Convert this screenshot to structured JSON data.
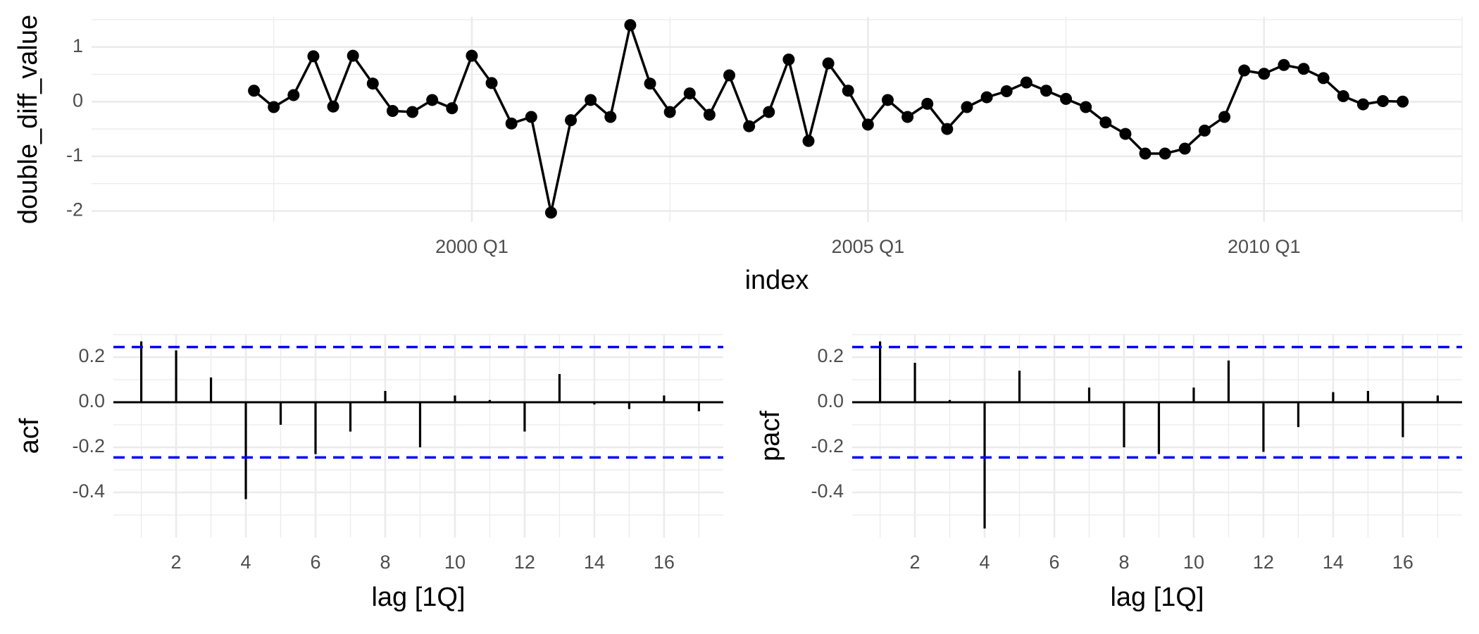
{
  "chart_data": [
    {
      "type": "line",
      "x_label": "index",
      "y_label": "double_diff_value",
      "color": "#000000",
      "grid": true,
      "x": [
        1997.25,
        1997.5,
        1997.75,
        1998,
        1998.25,
        1998.5,
        1998.75,
        1999,
        1999.25,
        1999.5,
        1999.75,
        2000,
        2000.25,
        2000.5,
        2000.75,
        2001,
        2001.25,
        2001.5,
        2001.75,
        2002,
        2002.25,
        2002.5,
        2002.75,
        2003,
        2003.25,
        2003.5,
        2003.75,
        2004,
        2004.25,
        2004.5,
        2004.75,
        2005,
        2005.25,
        2005.5,
        2005.75,
        2006,
        2006.25,
        2006.5,
        2006.75,
        2007,
        2007.25,
        2007.5,
        2007.75,
        2008,
        2008.25,
        2008.5,
        2008.75,
        2009,
        2009.25,
        2009.5,
        2009.75,
        2010,
        2010.25,
        2010.5,
        2010.75,
        2011,
        2011.25,
        2011.5,
        2011.75
      ],
      "values": [
        0.2,
        -0.1,
        0.12,
        0.83,
        -0.09,
        0.84,
        0.33,
        -0.17,
        -0.19,
        0.03,
        -0.12,
        0.84,
        0.34,
        -0.4,
        -0.28,
        -2.03,
        -0.34,
        0.03,
        -0.28,
        1.4,
        0.33,
        -0.19,
        0.15,
        -0.24,
        0.48,
        -0.45,
        -0.19,
        0.77,
        -0.72,
        0.7,
        0.2,
        -0.42,
        0.03,
        -0.28,
        -0.04,
        -0.5,
        -0.1,
        0.08,
        0.19,
        0.35,
        0.2,
        0.05,
        -0.1,
        -0.38,
        -0.59,
        -0.95,
        -0.95,
        -0.86,
        -0.53,
        -0.28,
        0.57,
        0.51,
        0.67,
        0.6,
        0.43,
        0.1,
        -0.05,
        0.01,
        0.0
      ],
      "xlim": [
        1995.2,
        2012.5
      ],
      "xticks": [
        {
          "value": 2000,
          "label": "2000 Q1"
        },
        {
          "value": 2005,
          "label": "2005 Q1"
        },
        {
          "value": 2010,
          "label": "2010 Q1"
        }
      ],
      "ylim": [
        -2.2,
        1.55
      ],
      "yticks": [
        -2,
        -1,
        0,
        1
      ]
    },
    {
      "type": "bar",
      "x_label": "lag [1Q]",
      "y_label": "acf",
      "color": "#000000",
      "grid": true,
      "x": [
        1,
        2,
        3,
        4,
        5,
        6,
        7,
        8,
        9,
        10,
        11,
        12,
        13,
        14,
        15,
        16,
        17
      ],
      "values": [
        0.27,
        0.23,
        0.11,
        -0.43,
        -0.1,
        -0.23,
        -0.13,
        0.05,
        -0.2,
        0.03,
        0.01,
        -0.13,
        0.125,
        -0.01,
        -0.03,
        0.03,
        -0.04
      ],
      "ci": [
        0.245,
        -0.245
      ],
      "ci_color": "#0000ff",
      "xlim": [
        0.2,
        17.7
      ],
      "xticks": [
        2,
        4,
        6,
        8,
        10,
        12,
        14,
        16
      ],
      "ylim": [
        -0.6,
        0.3
      ],
      "yticks": [
        -0.4,
        -0.2,
        {
          "value": 0,
          "label": "0.0"
        },
        0.2
      ]
    },
    {
      "type": "bar",
      "x_label": "lag [1Q]",
      "y_label": "pacf",
      "color": "#000000",
      "grid": true,
      "x": [
        1,
        2,
        3,
        4,
        5,
        6,
        7,
        8,
        9,
        10,
        11,
        12,
        13,
        14,
        15,
        16,
        17
      ],
      "values": [
        0.27,
        0.175,
        0.01,
        -0.56,
        0.14,
        0,
        0.065,
        -0.2,
        -0.23,
        0.065,
        0.185,
        -0.22,
        -0.11,
        0.045,
        0.05,
        -0.155,
        0.03
      ],
      "ci": [
        0.245,
        -0.245
      ],
      "ci_color": "#0000ff",
      "xlim": [
        0.2,
        17.7
      ],
      "xticks": [
        2,
        4,
        6,
        8,
        10,
        12,
        14,
        16
      ],
      "ylim": [
        -0.6,
        0.3
      ],
      "yticks": [
        -0.4,
        -0.2,
        {
          "value": 0,
          "label": "0.0"
        },
        0.2
      ]
    }
  ]
}
